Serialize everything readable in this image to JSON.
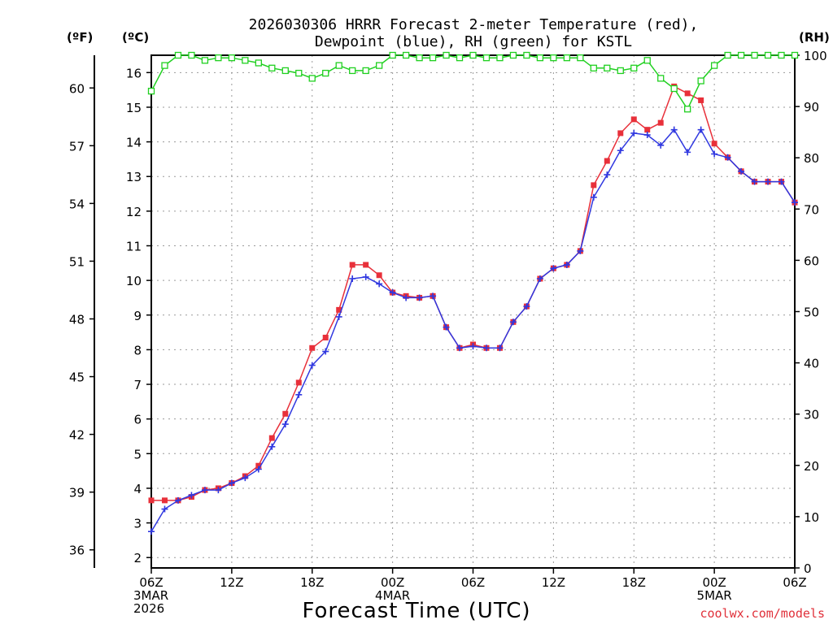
{
  "chart_data": {
    "type": "line",
    "title_lines": [
      "2026030306 HRRR Forecast 2-meter Temperature (red),",
      "Dewpoint (blue), RH (green) for KSTL"
    ],
    "xlabel": "Forecast Time (UTC)",
    "credit": "coolwx.com/models",
    "units": {
      "fahrenheit": "(ºF)",
      "celsius": "(ºC)",
      "rh": "(RH)"
    },
    "x_range_hours": [
      0,
      48
    ],
    "x_ticks": [
      {
        "hour": 0,
        "lines": [
          "06Z",
          "3MAR",
          "2026"
        ]
      },
      {
        "hour": 6,
        "lines": [
          "12Z"
        ]
      },
      {
        "hour": 12,
        "lines": [
          "18Z"
        ]
      },
      {
        "hour": 18,
        "lines": [
          "00Z",
          "4MAR"
        ]
      },
      {
        "hour": 24,
        "lines": [
          "06Z"
        ]
      },
      {
        "hour": 30,
        "lines": [
          "12Z"
        ]
      },
      {
        "hour": 36,
        "lines": [
          "18Z"
        ]
      },
      {
        "hour": 42,
        "lines": [
          "00Z",
          "5MAR"
        ]
      },
      {
        "hour": 48,
        "lines": [
          "06Z"
        ]
      }
    ],
    "celsius_axis": {
      "ylim": [
        1.7,
        16.5
      ],
      "ticks": [
        2,
        3,
        4,
        5,
        6,
        7,
        8,
        9,
        10,
        11,
        12,
        13,
        14,
        15,
        16
      ]
    },
    "fahrenheit_axis": {
      "ticks": [
        36,
        39,
        42,
        45,
        48,
        51,
        54,
        57,
        60
      ]
    },
    "rh_axis": {
      "ylim": [
        0,
        100
      ],
      "ticks": [
        0,
        10,
        20,
        30,
        40,
        50,
        60,
        70,
        80,
        90,
        100
      ]
    },
    "series": [
      {
        "name": "Temperature",
        "unit": "C",
        "color": "#e8303a",
        "marker": "square",
        "values": [
          3.65,
          3.65,
          3.65,
          3.75,
          3.95,
          4.0,
          4.15,
          4.35,
          4.65,
          5.45,
          6.15,
          7.05,
          8.05,
          8.35,
          9.15,
          10.45,
          10.45,
          10.15,
          9.65,
          9.55,
          9.5,
          9.55,
          8.65,
          8.05,
          8.15,
          8.05,
          8.05,
          8.8,
          9.25,
          10.05,
          10.35,
          10.45,
          10.85,
          12.75,
          13.45,
          14.25,
          14.65,
          14.35,
          14.55,
          15.6,
          15.4,
          15.2,
          13.95,
          13.55,
          13.15,
          12.85,
          12.85,
          12.85,
          12.25
        ]
      },
      {
        "name": "Dewpoint",
        "unit": "C",
        "color": "#3038e0",
        "marker": "plus",
        "values": [
          2.75,
          3.4,
          3.65,
          3.8,
          3.95,
          3.95,
          4.15,
          4.3,
          4.55,
          5.2,
          5.85,
          6.7,
          7.55,
          7.95,
          8.95,
          10.05,
          10.1,
          9.9,
          9.65,
          9.5,
          9.5,
          9.55,
          8.65,
          8.05,
          8.1,
          8.05,
          8.05,
          8.8,
          9.25,
          10.05,
          10.35,
          10.45,
          10.85,
          12.4,
          13.05,
          13.75,
          14.25,
          14.2,
          13.9,
          14.35,
          13.7,
          14.35,
          13.65,
          13.55,
          13.15,
          12.85,
          12.85,
          12.85,
          12.25
        ]
      },
      {
        "name": "RH",
        "unit": "%",
        "color": "#20d020",
        "marker": "open-square",
        "values": [
          93,
          98,
          100,
          100,
          99,
          99.5,
          99.5,
          99,
          98.5,
          97.5,
          97,
          96.5,
          95.5,
          96.5,
          98,
          97,
          97,
          98,
          100,
          100,
          99.5,
          99.5,
          100,
          99.5,
          100,
          99.5,
          99.5,
          100,
          100,
          99.5,
          99.5,
          99.5,
          99.5,
          97.5,
          97.5,
          97,
          97.5,
          99,
          95.5,
          93.5,
          89.5,
          95,
          98,
          100,
          100,
          100,
          100,
          100,
          100
        ]
      }
    ]
  }
}
